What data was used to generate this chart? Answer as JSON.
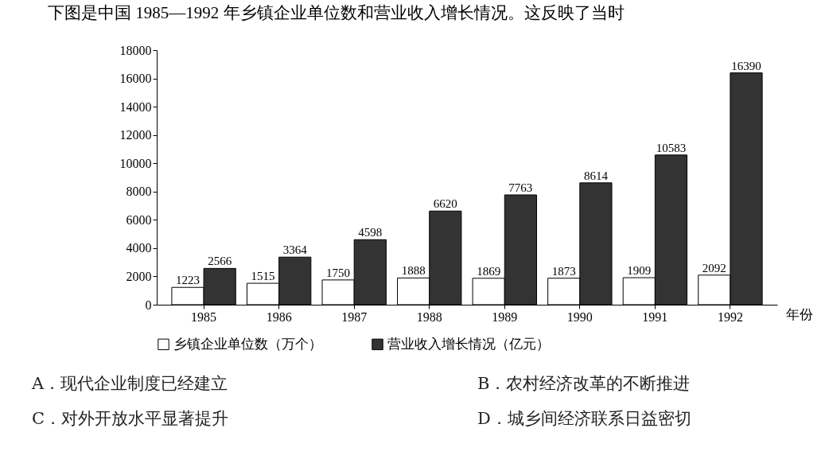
{
  "chart_data": {
    "type": "bar",
    "title": "下图是中国 1985—1992 年乡镇企业单位数和营业收入增长情况。这反映了当时",
    "xlabel": "年份",
    "categories": [
      "1985",
      "1986",
      "1987",
      "1988",
      "1989",
      "1990",
      "1991",
      "1992"
    ],
    "series": [
      {
        "name": "乡镇企业单位数（万个）",
        "color": "#ffffff",
        "values": [
          1223,
          1515,
          1750,
          1888,
          1869,
          1873,
          1909,
          2092
        ]
      },
      {
        "name": "营业收入增长情况（亿元）",
        "color": "#333333",
        "values": [
          2566,
          3364,
          4598,
          6620,
          7763,
          8614,
          10583,
          16390
        ]
      }
    ],
    "ylim": [
      0,
      18000
    ],
    "yticks": [
      0,
      2000,
      4000,
      6000,
      8000,
      10000,
      12000,
      14000,
      16000,
      18000
    ],
    "data_labels": true,
    "legend": "bottom",
    "grid": false,
    "annotations": [
      "A．现代企业制度已经建立",
      "B．农村经济改革的不断推进",
      "C．对外开放水平显著提升",
      "D．城乡间经济联系日益密切"
    ]
  }
}
